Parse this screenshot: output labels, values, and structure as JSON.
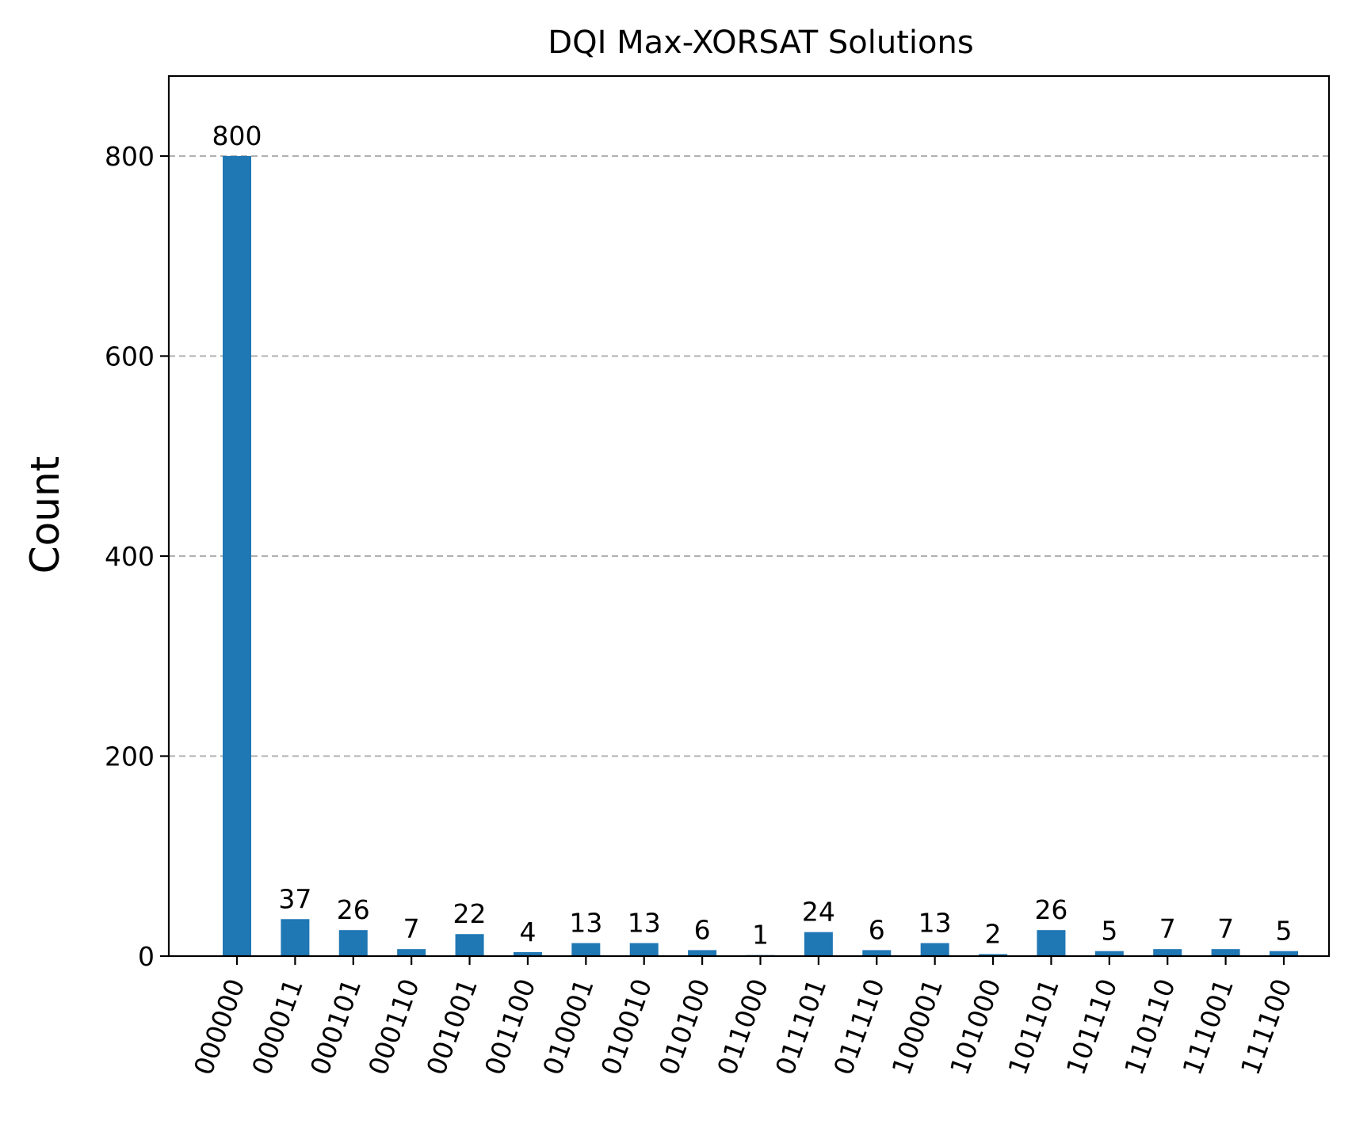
{
  "chart_data": {
    "type": "bar",
    "title": "DQI Max-XORSAT Solutions",
    "xlabel": "",
    "ylabel": "Count",
    "ylim": [
      0,
      880
    ],
    "yticks": [
      0,
      200,
      400,
      600,
      800
    ],
    "grid": "y-dashed",
    "bar_color": "#1f77b4",
    "categories": [
      "000000",
      "000011",
      "000101",
      "000110",
      "001001",
      "001100",
      "010001",
      "010010",
      "010100",
      "011000",
      "011101",
      "011110",
      "100001",
      "101000",
      "101101",
      "101110",
      "110110",
      "111001",
      "111100"
    ],
    "values": [
      800,
      37,
      26,
      7,
      22,
      4,
      13,
      13,
      6,
      1,
      24,
      6,
      13,
      2,
      26,
      5,
      7,
      7,
      5
    ]
  }
}
